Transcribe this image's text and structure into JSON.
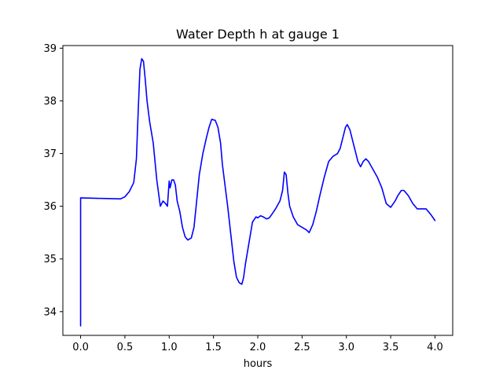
{
  "chart_data": {
    "type": "line",
    "title": "Water Depth h at gauge 1",
    "xlabel": "hours",
    "ylabel": "",
    "xlim": [
      -0.2,
      4.2
    ],
    "ylim": [
      33.55,
      39.05
    ],
    "x_ticks": [
      0.0,
      0.5,
      1.0,
      1.5,
      2.0,
      2.5,
      3.0,
      3.5,
      4.0
    ],
    "x_tick_labels": [
      "0.0",
      "0.5",
      "1.0",
      "1.5",
      "2.0",
      "2.5",
      "3.0",
      "3.5",
      "4.0"
    ],
    "y_ticks": [
      34,
      35,
      36,
      37,
      38,
      39
    ],
    "y_tick_labels": [
      "34",
      "35",
      "36",
      "37",
      "38",
      "39"
    ],
    "grid": false,
    "series": [
      {
        "color": "#0000ff",
        "x": [
          0.0,
          0.0,
          0.0,
          0.2,
          0.45,
          0.5,
          0.55,
          0.6,
          0.63,
          0.65,
          0.67,
          0.69,
          0.71,
          0.73,
          0.75,
          0.78,
          0.82,
          0.86,
          0.9,
          0.93,
          0.96,
          0.98,
          1.0,
          1.01,
          1.03,
          1.05,
          1.07,
          1.09,
          1.12,
          1.15,
          1.18,
          1.21,
          1.25,
          1.28,
          1.31,
          1.34,
          1.38,
          1.42,
          1.45,
          1.48,
          1.52,
          1.55,
          1.58,
          1.6,
          1.63,
          1.66,
          1.7,
          1.73,
          1.76,
          1.79,
          1.82,
          1.84,
          1.86,
          1.9,
          1.94,
          1.98,
          2.0,
          2.03,
          2.06,
          2.1,
          2.13,
          2.16,
          2.2,
          2.25,
          2.28,
          2.3,
          2.32,
          2.34,
          2.36,
          2.4,
          2.45,
          2.5,
          2.55,
          2.58,
          2.62,
          2.66,
          2.7,
          2.75,
          2.8,
          2.85,
          2.9,
          2.93,
          2.96,
          2.99,
          3.01,
          3.04,
          3.07,
          3.1,
          3.13,
          3.16,
          3.19,
          3.22,
          3.25,
          3.3,
          3.35,
          3.4,
          3.45,
          3.5,
          3.55,
          3.58,
          3.62,
          3.65,
          3.7,
          3.75,
          3.8,
          3.85,
          3.9,
          3.95,
          4.0
        ],
        "y": [
          33.73,
          35.0,
          36.16,
          36.15,
          36.14,
          36.18,
          36.28,
          36.45,
          36.9,
          37.8,
          38.6,
          38.8,
          38.75,
          38.4,
          38.0,
          37.6,
          37.2,
          36.5,
          36.0,
          36.1,
          36.05,
          36.0,
          36.48,
          36.35,
          36.5,
          36.5,
          36.4,
          36.1,
          35.9,
          35.6,
          35.42,
          35.36,
          35.4,
          35.6,
          36.1,
          36.6,
          37.0,
          37.3,
          37.5,
          37.65,
          37.63,
          37.5,
          37.2,
          36.8,
          36.4,
          36.0,
          35.4,
          34.95,
          34.65,
          34.55,
          34.52,
          34.65,
          34.9,
          35.3,
          35.7,
          35.8,
          35.78,
          35.82,
          35.8,
          35.76,
          35.78,
          35.85,
          35.95,
          36.1,
          36.3,
          36.65,
          36.6,
          36.25,
          36.0,
          35.8,
          35.65,
          35.6,
          35.55,
          35.5,
          35.65,
          35.9,
          36.2,
          36.55,
          36.85,
          36.95,
          37.0,
          37.1,
          37.3,
          37.5,
          37.55,
          37.45,
          37.25,
          37.05,
          36.85,
          36.75,
          36.85,
          36.9,
          36.85,
          36.7,
          36.55,
          36.35,
          36.05,
          35.98,
          36.1,
          36.2,
          36.3,
          36.3,
          36.2,
          36.05,
          35.95,
          35.95,
          35.95,
          35.85,
          35.73
        ]
      }
    ]
  }
}
